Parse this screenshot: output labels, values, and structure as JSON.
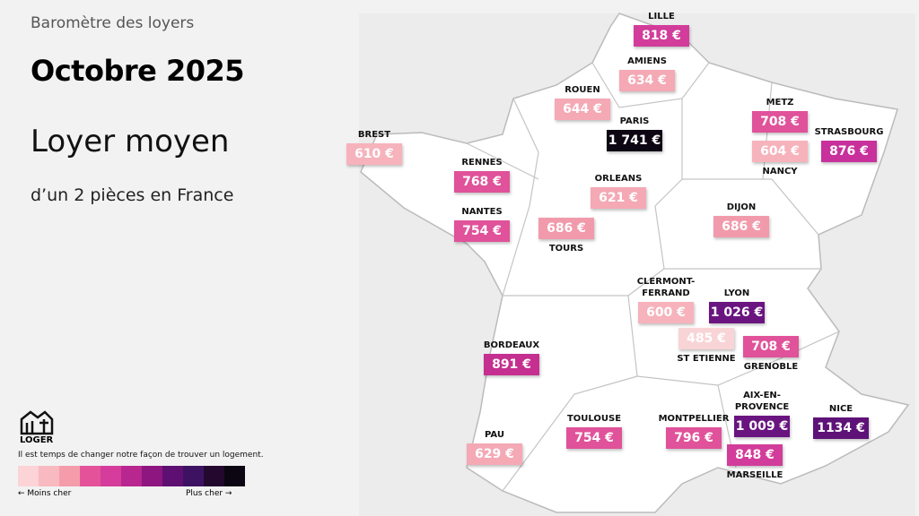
{
  "header": {
    "subtitle": "Baromètre des loyers",
    "title": "Octobre 2025",
    "heading": "Loyer moyen",
    "subheading": "d’un 2 pièces en France"
  },
  "cities": [
    {
      "name": "LILLE",
      "price": "818 €",
      "color": "#d23c9a",
      "label_above": true
    },
    {
      "name": "AMIENS",
      "price": "634 €",
      "color": "#f4a9b5",
      "label_above": true
    },
    {
      "name": "ROUEN",
      "price": "644 €",
      "color": "#f4a9b5",
      "label_above": true
    },
    {
      "name": "PARIS",
      "price": "1 741 €",
      "color": "#0c0612",
      "label_above": true
    },
    {
      "name": "METZ",
      "price": "708 €",
      "color": "#e0529a",
      "label_above": true
    },
    {
      "name": "NANCY",
      "price": "604 €",
      "color": "#f6b3bc",
      "label_above": false
    },
    {
      "name": "STRASBOURG",
      "price": "876 €",
      "color": "#c8309c",
      "label_above": true
    },
    {
      "name": "BREST",
      "price": "610 €",
      "color": "#f6b3bc",
      "label_above": true
    },
    {
      "name": "RENNES",
      "price": "768 €",
      "color": "#e0529a",
      "label_above": true
    },
    {
      "name": "ORLEANS",
      "price": "621 €",
      "color": "#f4a9b5",
      "label_above": true
    },
    {
      "name": "NANTES",
      "price": "754 €",
      "color": "#e0529a",
      "label_above": true
    },
    {
      "name": "TOURS",
      "price": "686 €",
      "color": "#f19aab",
      "label_above": false
    },
    {
      "name": "DIJON",
      "price": "686 €",
      "color": "#f19aab",
      "label_above": true
    },
    {
      "name": "CLERMONT-\nFERRAND",
      "price": "600 €",
      "color": "#f6b3bc",
      "label_above": true
    },
    {
      "name": "LYON",
      "price": "1 026 €",
      "color": "#6a1480",
      "label_above": true
    },
    {
      "name": "ST ETIENNE",
      "price": "485 €",
      "color": "#f9d4d6",
      "label_above": false
    },
    {
      "name": "GRENOBLE",
      "price": "708 €",
      "color": "#e0529a",
      "label_above": false
    },
    {
      "name": "BORDEAUX",
      "price": "891 €",
      "color": "#c52f90",
      "label_above": true
    },
    {
      "name": "AIX-EN-\nPROVENCE",
      "price": "1 009 €",
      "color": "#6a1480",
      "label_above": true
    },
    {
      "name": "NICE",
      "price": "1134 €",
      "color": "#5e1278",
      "label_above": true
    },
    {
      "name": "MONTPELLIER",
      "price": "796 €",
      "color": "#e0529a",
      "label_above": true
    },
    {
      "name": "TOULOUSE",
      "price": "754 €",
      "color": "#e0529a",
      "label_above": true
    },
    {
      "name": "PAU",
      "price": "629 €",
      "color": "#f4a9b5",
      "label_above": true
    },
    {
      "name": "MARSEILLE",
      "price": "848 €",
      "color": "#d23c9a",
      "label_above": false
    }
  ],
  "legend": {
    "brand": "LOGER",
    "tagline": "Il est temps de changer notre façon de trouver un logement.",
    "less": "← Moins cher",
    "more": "Plus cher →",
    "scale_colors": [
      "#fcd3d6",
      "#f9b9c0",
      "#f59cab",
      "#e4529a",
      "#d53c9c",
      "#b8268f",
      "#8e1680",
      "#5e0f72",
      "#3e1263",
      "#24092f",
      "#0c0612"
    ]
  }
}
